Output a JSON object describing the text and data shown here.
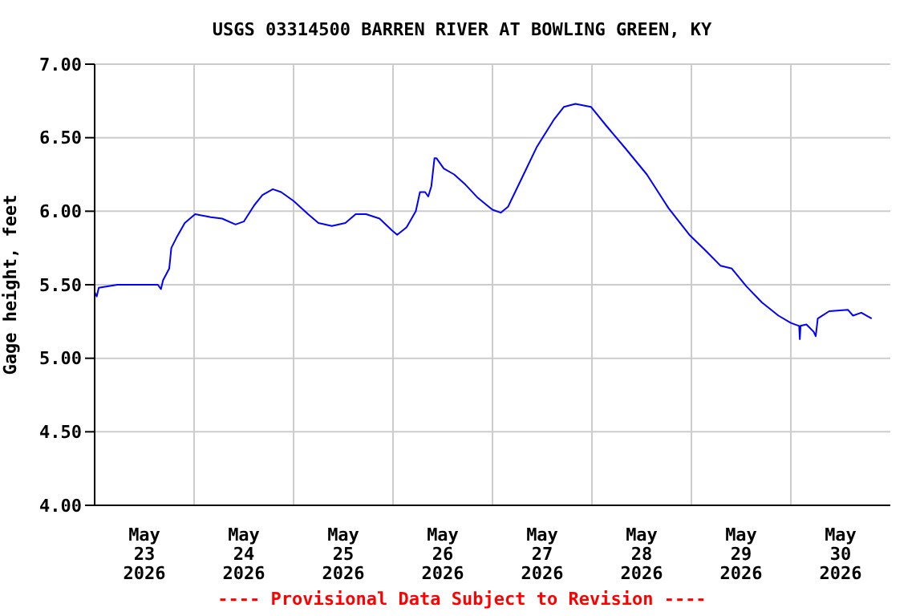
{
  "chart_data": {
    "type": "line",
    "title": "USGS 03314500 BARREN RIVER AT BOWLING GREEN, KY",
    "ylabel": "Gage height, feet",
    "annotations": [
      "---- Provisional Data Subject to Revision ----"
    ],
    "x": [
      "2026-05-23T00:00",
      "2026-05-23T00:30",
      "2026-05-23T01:00",
      "2026-05-23T05:30",
      "2026-05-23T15:15",
      "2026-05-23T16:00",
      "2026-05-23T16:30",
      "2026-05-23T18:00",
      "2026-05-23T18:30",
      "2026-05-23T19:45",
      "2026-05-23T21:45",
      "2026-05-24T00:15",
      "2026-05-24T04:00",
      "2026-05-24T06:45",
      "2026-05-24T10:00",
      "2026-05-24T12:00",
      "2026-05-24T14:30",
      "2026-05-24T16:30",
      "2026-05-24T19:00",
      "2026-05-24T21:00",
      "2026-05-25T00:00",
      "2026-05-25T03:30",
      "2026-05-25T06:00",
      "2026-05-25T09:15",
      "2026-05-25T12:30",
      "2026-05-25T15:00",
      "2026-05-25T17:30",
      "2026-05-25T20:45",
      "2026-05-25T23:45",
      "2026-05-26T01:00",
      "2026-05-26T03:15",
      "2026-05-26T05:30",
      "2026-05-26T06:30",
      "2026-05-26T07:45",
      "2026-05-26T08:30",
      "2026-05-26T09:15",
      "2026-05-26T10:00",
      "2026-05-26T10:30",
      "2026-05-26T12:15",
      "2026-05-26T14:45",
      "2026-05-26T17:30",
      "2026-05-26T20:30",
      "2026-05-27T00:00",
      "2026-05-27T02:00",
      "2026-05-27T03:45",
      "2026-05-27T07:00",
      "2026-05-27T10:45",
      "2026-05-27T14:45",
      "2026-05-27T17:15",
      "2026-05-27T20:00",
      "2026-05-27T23:45",
      "2026-05-28T03:30",
      "2026-05-28T08:00",
      "2026-05-28T13:15",
      "2026-05-28T18:30",
      "2026-05-28T23:30",
      "2026-05-29T03:30",
      "2026-05-29T07:00",
      "2026-05-29T09:45",
      "2026-05-29T13:15",
      "2026-05-29T17:00",
      "2026-05-29T21:00",
      "2026-05-30T00:00",
      "2026-05-30T02:00",
      "2026-05-30T02:10",
      "2026-05-30T02:20",
      "2026-05-30T03:45",
      "2026-05-30T05:30",
      "2026-05-30T06:00",
      "2026-05-30T06:30",
      "2026-05-30T09:15",
      "2026-05-30T13:45",
      "2026-05-30T15:00",
      "2026-05-30T17:00",
      "2026-05-30T19:30"
    ],
    "series": [
      {
        "color": "#0000ff",
        "values": [
          5.45,
          5.42,
          5.48,
          5.5,
          5.5,
          5.47,
          5.53,
          5.61,
          5.75,
          5.82,
          5.92,
          5.98,
          5.96,
          5.95,
          5.91,
          5.93,
          6.04,
          6.11,
          6.15,
          6.13,
          6.07,
          5.98,
          5.92,
          5.9,
          5.92,
          5.98,
          5.98,
          5.95,
          5.87,
          5.84,
          5.89,
          6.0,
          6.13,
          6.13,
          6.1,
          6.17,
          6.36,
          6.36,
          6.29,
          6.25,
          6.18,
          6.09,
          6.01,
          5.99,
          6.03,
          6.22,
          6.44,
          6.62,
          6.71,
          6.73,
          6.71,
          6.58,
          6.43,
          6.25,
          6.02,
          5.84,
          5.73,
          5.63,
          5.61,
          5.49,
          5.38,
          5.29,
          5.24,
          5.22,
          5.13,
          5.22,
          5.23,
          5.18,
          5.15,
          5.27,
          5.32,
          5.33,
          5.29,
          5.31,
          5.27
        ]
      }
    ],
    "xlim": [
      "2026-05-23T00:00",
      "2026-05-31T00:00"
    ],
    "xticks": [
      {
        "value": "2026-05-23T12:00",
        "label": "May 23 2026"
      },
      {
        "value": "2026-05-24T00:00",
        "label": null
      },
      {
        "value": "2026-05-24T12:00",
        "label": "May 24 2026"
      },
      {
        "value": "2026-05-25T00:00",
        "label": null
      },
      {
        "value": "2026-05-25T12:00",
        "label": "May 25 2026"
      },
      {
        "value": "2026-05-26T00:00",
        "label": null
      },
      {
        "value": "2026-05-26T12:00",
        "label": "May 26 2026"
      },
      {
        "value": "2026-05-27T00:00",
        "label": null
      },
      {
        "value": "2026-05-27T12:00",
        "label": "May 27 2026"
      },
      {
        "value": "2026-05-28T00:00",
        "label": null
      },
      {
        "value": "2026-05-28T12:00",
        "label": "May 28 2026"
      },
      {
        "value": "2026-05-29T00:00",
        "label": null
      },
      {
        "value": "2026-05-29T12:00",
        "label": "May 29 2026"
      },
      {
        "value": "2026-05-30T00:00",
        "label": null
      },
      {
        "value": "2026-05-30T12:00",
        "label": "May 30 2026"
      }
    ],
    "ylim": [
      4,
      7
    ],
    "yticks": [
      {
        "value": 4,
        "label": "4.00"
      },
      {
        "value": 4.5,
        "label": "4.50"
      },
      {
        "value": 5,
        "label": "5.00"
      },
      {
        "value": 5.5,
        "label": "5.50"
      },
      {
        "value": 6,
        "label": "6.00"
      },
      {
        "value": 6.5,
        "label": "6.50"
      },
      {
        "value": 7,
        "label": "7.00"
      }
    ],
    "grid": true,
    "legend": false,
    "marker": "none",
    "line_style": "solid"
  }
}
